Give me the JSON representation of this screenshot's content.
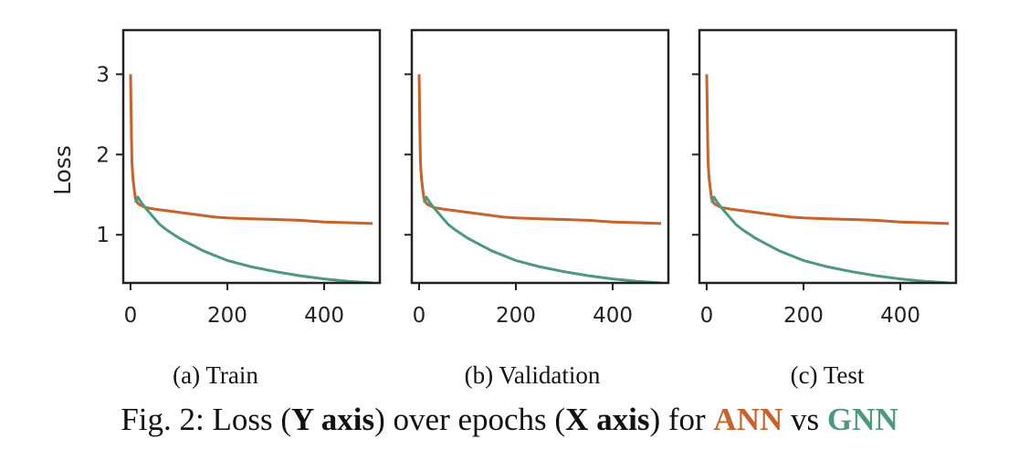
{
  "chart_data": [
    {
      "type": "line",
      "subcaption": "(a) Train",
      "ylabel": "Loss",
      "xlim": [
        -15,
        515
      ],
      "ylim": [
        0.4,
        3.55
      ],
      "xticks": [
        "0",
        "200",
        "400"
      ],
      "yticks": [
        "1",
        "2",
        "3"
      ],
      "series": [
        {
          "name": "ANN",
          "color": "#c8612a",
          "x": [
            0,
            1,
            2,
            3,
            5,
            8,
            10,
            15,
            20,
            30,
            50,
            75,
            100,
            125,
            150,
            175,
            200,
            250,
            300,
            350,
            400,
            450,
            500
          ],
          "y": [
            3.0,
            2.6,
            2.2,
            1.9,
            1.7,
            1.55,
            1.45,
            1.39,
            1.37,
            1.34,
            1.32,
            1.3,
            1.28,
            1.26,
            1.24,
            1.22,
            1.21,
            1.2,
            1.19,
            1.18,
            1.16,
            1.15,
            1.14
          ]
        },
        {
          "name": "GNN",
          "color": "#4c9a7a",
          "x": [
            10,
            15,
            20,
            25,
            30,
            40,
            50,
            60,
            75,
            100,
            125,
            150,
            175,
            200,
            250,
            300,
            350,
            400,
            450,
            500
          ],
          "y": [
            1.4,
            1.47,
            1.42,
            1.38,
            1.34,
            1.27,
            1.2,
            1.13,
            1.06,
            0.96,
            0.88,
            0.8,
            0.74,
            0.68,
            0.6,
            0.54,
            0.49,
            0.45,
            0.42,
            0.4
          ]
        }
      ]
    },
    {
      "type": "line",
      "subcaption": "(b) Validation",
      "ylabel": "",
      "xlim": [
        -15,
        515
      ],
      "ylim": [
        0.4,
        3.55
      ],
      "xticks": [
        "0",
        "200",
        "400"
      ],
      "yticks": [
        "",
        "",
        ""
      ],
      "series": [
        {
          "name": "ANN",
          "color": "#c8612a",
          "x": [
            0,
            1,
            2,
            3,
            5,
            8,
            10,
            15,
            20,
            30,
            50,
            75,
            100,
            125,
            150,
            175,
            200,
            250,
            300,
            350,
            400,
            450,
            500
          ],
          "y": [
            3.0,
            2.6,
            2.2,
            1.9,
            1.7,
            1.55,
            1.45,
            1.39,
            1.37,
            1.34,
            1.32,
            1.3,
            1.28,
            1.26,
            1.24,
            1.22,
            1.21,
            1.2,
            1.19,
            1.18,
            1.16,
            1.15,
            1.14
          ]
        },
        {
          "name": "GNN",
          "color": "#4c9a7a",
          "x": [
            10,
            15,
            20,
            25,
            30,
            40,
            50,
            60,
            75,
            100,
            125,
            150,
            175,
            200,
            250,
            300,
            350,
            400,
            450,
            500
          ],
          "y": [
            1.4,
            1.47,
            1.42,
            1.38,
            1.34,
            1.27,
            1.2,
            1.13,
            1.06,
            0.96,
            0.88,
            0.8,
            0.74,
            0.68,
            0.6,
            0.54,
            0.49,
            0.45,
            0.42,
            0.4
          ]
        }
      ]
    },
    {
      "type": "line",
      "subcaption": "(c) Test",
      "ylabel": "",
      "xlim": [
        -15,
        515
      ],
      "ylim": [
        0.4,
        3.55
      ],
      "xticks": [
        "0",
        "200",
        "400"
      ],
      "yticks": [
        "",
        "",
        ""
      ],
      "series": [
        {
          "name": "ANN",
          "color": "#c8612a",
          "x": [
            0,
            1,
            2,
            3,
            5,
            8,
            10,
            15,
            20,
            30,
            50,
            75,
            100,
            125,
            150,
            175,
            200,
            250,
            300,
            350,
            400,
            450,
            500
          ],
          "y": [
            3.0,
            2.6,
            2.2,
            1.9,
            1.7,
            1.55,
            1.45,
            1.39,
            1.37,
            1.34,
            1.32,
            1.3,
            1.28,
            1.26,
            1.24,
            1.22,
            1.21,
            1.2,
            1.19,
            1.18,
            1.16,
            1.15,
            1.14
          ]
        },
        {
          "name": "GNN",
          "color": "#4c9a7a",
          "x": [
            10,
            15,
            20,
            25,
            30,
            40,
            50,
            60,
            75,
            100,
            125,
            150,
            175,
            200,
            250,
            300,
            350,
            400,
            450,
            500
          ],
          "y": [
            1.4,
            1.47,
            1.42,
            1.38,
            1.34,
            1.27,
            1.2,
            1.13,
            1.06,
            0.96,
            0.88,
            0.8,
            0.74,
            0.68,
            0.6,
            0.54,
            0.49,
            0.45,
            0.42,
            0.4
          ]
        }
      ]
    }
  ],
  "caption": {
    "prefix": "Fig. 2: Loss (",
    "y_axis": "Y axis",
    "mid1": ") over epochs (",
    "x_axis": "X axis",
    "mid2": ") for ",
    "ann": "ANN",
    "vs": " vs ",
    "gnn": "GNN",
    "ann_color": "#c8612a",
    "gnn_color": "#4c9a7a"
  }
}
